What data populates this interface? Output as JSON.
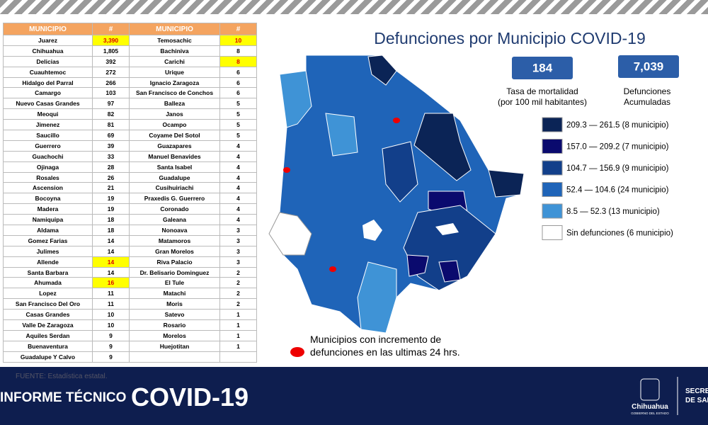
{
  "table": {
    "header": [
      "MUNICIPIO",
      "#",
      "MUNICIPIO",
      "#"
    ],
    "rows": [
      [
        "Juarez",
        "3,390",
        "Temosachic",
        "10"
      ],
      [
        "Chihuahua",
        "1,805",
        "Bachiniva",
        "8"
      ],
      [
        "Delicias",
        "392",
        "Carichi",
        "8"
      ],
      [
        "Cuauhtemoc",
        "272",
        "Urique",
        "6"
      ],
      [
        "Hidalgo del Parral",
        "266",
        "Ignacio Zaragoza",
        "6"
      ],
      [
        "Camargo",
        "103",
        "San Francisco de Conchos",
        "6"
      ],
      [
        "Nuevo Casas Grandes",
        "97",
        "Balleza",
        "5"
      ],
      [
        "Meoqui",
        "82",
        "Janos",
        "5"
      ],
      [
        "Jimenez",
        "81",
        "Ocampo",
        "5"
      ],
      [
        "Saucillo",
        "69",
        "Coyame Del Sotol",
        "5"
      ],
      [
        "Guerrero",
        "39",
        "Guazapares",
        "4"
      ],
      [
        "Guachochi",
        "33",
        "Manuel Benavides",
        "4"
      ],
      [
        "Ojinaga",
        "28",
        "Santa Isabel",
        "4"
      ],
      [
        "Rosales",
        "26",
        "Guadalupe",
        "4"
      ],
      [
        "Ascension",
        "21",
        "Cusihuiriachi",
        "4"
      ],
      [
        "Bocoyna",
        "19",
        "Praxedis G. Guerrero",
        "4"
      ],
      [
        "Madera",
        "19",
        "Coronado",
        "4"
      ],
      [
        "Namiquipa",
        "18",
        "Galeana",
        "4"
      ],
      [
        "Aldama",
        "18",
        "Nonoava",
        "3"
      ],
      [
        "Gomez Farias",
        "14",
        "Matamoros",
        "3"
      ],
      [
        "Julimes",
        "14",
        "Gran Morelos",
        "3"
      ],
      [
        "Allende",
        "14",
        "Riva Palacio",
        "3"
      ],
      [
        "Santa Barbara",
        "14",
        "Dr. Belisario Dominguez",
        "2"
      ],
      [
        "Ahumada",
        "16",
        "El Tule",
        "2"
      ],
      [
        "Lopez",
        "11",
        "Matachi",
        "2"
      ],
      [
        "San Francisco Del Oro",
        "11",
        "Moris",
        "2"
      ],
      [
        "Casas Grandes",
        "10",
        "Satevo",
        "1"
      ],
      [
        "Valle De Zaragoza",
        "10",
        "Rosario",
        "1"
      ],
      [
        "Aquiles Serdan",
        "9",
        "Morelos",
        "1"
      ],
      [
        "Buenaventura",
        "9",
        "Huejotitan",
        "1"
      ],
      [
        "Guadalupe Y Calvo",
        "9"
      ]
    ]
  },
  "map": {
    "title": "Defunciones por Municipio COVID-19",
    "stats": [
      {
        "value": "184",
        "label": [
          "Tasa de mortalidad",
          "(por 100 mil habitantes)"
        ]
      },
      {
        "value": "7,039",
        "label": [
          "Defunciones",
          "Acumuladas"
        ]
      }
    ],
    "legend": [
      {
        "color": "#0b2456",
        "label": "209.3 — 261.5 (8 municipio)"
      },
      {
        "color": "#0a0a6e",
        "label": "157.0 — 209.2 (7 municipio)"
      },
      {
        "color": "#123f8a",
        "label": "104.7 — 156.9 (9 municipio)"
      },
      {
        "color": "#1f64b8",
        "label": "52.4 — 104.6 (24 municipio)"
      },
      {
        "color": "#3f93d6",
        "label": "8.5 — 52.3 (13 municipio)"
      },
      {
        "color": "#ffffff",
        "label": "Sin defunciones (6 municipio)"
      }
    ],
    "note": [
      "Municipios con incremento de",
      "defunciones en las ultimas 24 hrs."
    ]
  },
  "footer": {
    "source": "FUENTE: Estadística estatal.",
    "left": "INFORME TÉCNICO",
    "right": "COVID-19",
    "logo": [
      "Chihuahua",
      "GOBIERNO DEL ESTADO"
    ],
    "dept": [
      "SECRETA",
      "DE SAL"
    ]
  }
}
